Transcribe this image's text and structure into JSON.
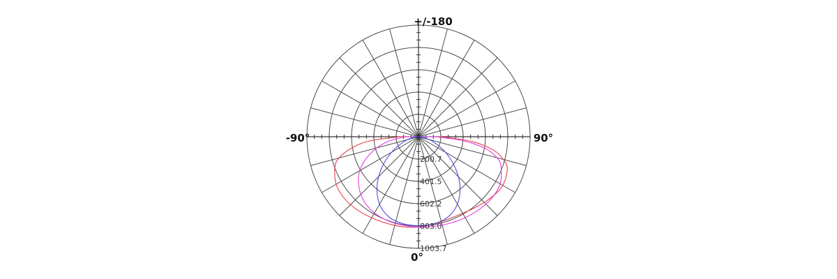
{
  "chart_data": {
    "type": "polar",
    "angle_labels": {
      "top": "+/-180",
      "left": "-90°",
      "right": "90°",
      "bottom": "0°"
    },
    "radial_ticks": [
      "200.7",
      "401.5",
      "602.2",
      "803.0",
      "1003.7"
    ],
    "r_max": 1003.7,
    "angle_step_deg": 15,
    "angle_unit": "deg",
    "series": [
      {
        "color": "#e8404a",
        "points": [
          [
            -90,
            170
          ],
          [
            -85,
            450
          ],
          [
            -80,
            620
          ],
          [
            -75,
            740
          ],
          [
            -70,
            800
          ],
          [
            -60,
            855
          ],
          [
            -50,
            868
          ],
          [
            -40,
            858
          ],
          [
            -30,
            842
          ],
          [
            -20,
            830
          ],
          [
            -10,
            822
          ],
          [
            0,
            812
          ],
          [
            10,
            798
          ],
          [
            20,
            788
          ],
          [
            30,
            795
          ],
          [
            40,
            820
          ],
          [
            50,
            852
          ],
          [
            60,
            875
          ],
          [
            70,
            850
          ],
          [
            75,
            790
          ],
          [
            80,
            680
          ],
          [
            85,
            480
          ],
          [
            90,
            200
          ]
        ]
      },
      {
        "color": "#e040e0",
        "points": [
          [
            -90,
            120
          ],
          [
            -80,
            300
          ],
          [
            -70,
            470
          ],
          [
            -60,
            610
          ],
          [
            -50,
            700
          ],
          [
            -40,
            760
          ],
          [
            -30,
            792
          ],
          [
            -20,
            805
          ],
          [
            -10,
            808
          ],
          [
            0,
            812
          ],
          [
            10,
            818
          ],
          [
            20,
            828
          ],
          [
            30,
            840
          ],
          [
            40,
            852
          ],
          [
            50,
            860
          ],
          [
            60,
            848
          ],
          [
            70,
            790
          ],
          [
            75,
            730
          ],
          [
            80,
            610
          ],
          [
            85,
            400
          ],
          [
            90,
            150
          ]
        ]
      },
      {
        "color": "#4a4ae0",
        "points": [
          [
            -90,
            0
          ],
          [
            -80,
            60
          ],
          [
            -70,
            150
          ],
          [
            -60,
            280
          ],
          [
            -50,
            430
          ],
          [
            -40,
            580
          ],
          [
            -30,
            700
          ],
          [
            -20,
            770
          ],
          [
            -10,
            795
          ],
          [
            0,
            800
          ],
          [
            10,
            795
          ],
          [
            20,
            770
          ],
          [
            30,
            700
          ],
          [
            40,
            580
          ],
          [
            50,
            430
          ],
          [
            60,
            280
          ],
          [
            70,
            150
          ],
          [
            80,
            60
          ],
          [
            90,
            0
          ]
        ]
      }
    ]
  }
}
